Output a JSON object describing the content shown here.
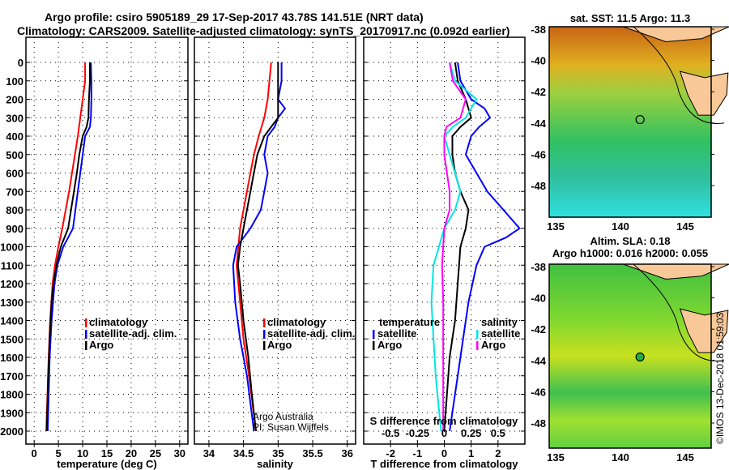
{
  "title_line1": "Argo profile: csiro 5905189_29 17-Sep-2017 43.78S 141.51E (NRT data)",
  "title_line2": "Climatology: CARS2009. Satellite-adjusted climatology: synTS_20170917.nc (0.092d earlier)",
  "credit_line1": "Argo Australia",
  "credit_line2": "PI: Susan Wijffels",
  "timestamp": "©IMOS 13-Dec-2018 01:59:03",
  "colors": {
    "argo": "#000000",
    "climatology": "#ff0000",
    "satellite": "#0000ff",
    "sal_satellite": "#00e5e5",
    "sal_argo": "#ff00ff"
  },
  "chart_data": [
    {
      "type": "line",
      "name": "temperature",
      "xlabel": "temperature (deg C)",
      "xlim": [
        -1.7,
        31.7
      ],
      "ylim": [
        2060,
        -50
      ],
      "xticks": [
        "0",
        "5",
        "10",
        "15",
        "20",
        "25",
        "30"
      ],
      "xtick_values": [
        0,
        5,
        10,
        15,
        20,
        25,
        30
      ],
      "yticks": [
        "0",
        "100",
        "200",
        "300",
        "400",
        "500",
        "600",
        "700",
        "800",
        "900",
        "1000",
        "1100",
        "1200",
        "1300",
        "1400",
        "1500",
        "1600",
        "1700",
        "1800",
        "1900",
        "2000"
      ],
      "legend": [
        "climatology",
        "satellite-adj. clim.",
        "Argo"
      ],
      "series": [
        {
          "name": "climatology",
          "color": "#ff0000",
          "depth": [
            0,
            100,
            200,
            300,
            400,
            500,
            600,
            700,
            800,
            900,
            1000,
            1100,
            1200,
            1400,
            1600,
            2000
          ],
          "values": [
            10.5,
            10.5,
            10,
            9.5,
            9,
            8.4,
            7.8,
            7.2,
            6.5,
            5.8,
            5,
            4.3,
            3.8,
            3.3,
            3,
            2.5
          ]
        },
        {
          "name": "satellite-adj. clim.",
          "color": "#0000ff",
          "depth": [
            0,
            100,
            200,
            300,
            350,
            400,
            500,
            600,
            700,
            800,
            900,
            1000,
            1100,
            1200,
            1400,
            1600,
            2000
          ],
          "values": [
            11.7,
            11.8,
            11.8,
            11.7,
            11.5,
            10.5,
            10,
            9.5,
            9,
            8.5,
            8,
            6,
            4.8,
            4.2,
            3.6,
            3.2,
            2.8
          ]
        },
        {
          "name": "Argo",
          "color": "#000000",
          "depth": [
            0,
            100,
            200,
            300,
            350,
            400,
            500,
            600,
            700,
            800,
            900,
            1000,
            1100,
            1200,
            1300,
            1500,
            1700,
            2000
          ],
          "values": [
            11.5,
            11.5,
            11.3,
            11.2,
            10.8,
            10,
            9.3,
            8.8,
            8.2,
            7.6,
            7,
            5.5,
            4.6,
            4,
            3.6,
            3.2,
            2.9,
            2.6
          ]
        }
      ]
    },
    {
      "type": "line",
      "name": "salinity",
      "xlabel": "salinity",
      "xlim": [
        33.79,
        36.12
      ],
      "ylim": [
        2060,
        -50
      ],
      "xticks": [
        "34",
        "34.5",
        "35",
        "35.5",
        "36"
      ],
      "xtick_values": [
        34,
        34.5,
        35,
        35.5,
        36
      ],
      "legend": [
        "climatology",
        "satellite-adj. clim.",
        "Argo"
      ],
      "series": [
        {
          "name": "climatology",
          "color": "#ff0000",
          "depth": [
            0,
            200,
            300,
            400,
            500,
            700,
            900,
            1100,
            1300,
            1500,
            1700,
            2000
          ],
          "values": [
            34.9,
            34.85,
            34.8,
            34.72,
            34.65,
            34.55,
            34.45,
            34.4,
            34.45,
            34.5,
            34.58,
            34.68
          ]
        },
        {
          "name": "satellite-adj. clim.",
          "color": "#0000ff",
          "depth": [
            0,
            100,
            200,
            250,
            300,
            350,
            400,
            500,
            600,
            700,
            800,
            900,
            1000,
            1100,
            1300,
            1500,
            1700,
            2000
          ],
          "values": [
            35.05,
            35.05,
            35.0,
            35.1,
            35.0,
            34.95,
            34.85,
            34.8,
            34.85,
            34.8,
            34.75,
            34.6,
            34.4,
            34.35,
            34.38,
            34.45,
            34.55,
            34.65
          ]
        },
        {
          "name": "Argo",
          "color": "#000000",
          "depth": [
            0,
            100,
            300,
            350,
            400,
            500,
            700,
            900,
            1000,
            1100,
            1200,
            1400,
            1600,
            1800,
            2000
          ],
          "values": [
            35.0,
            35.0,
            35.0,
            34.9,
            34.8,
            34.7,
            34.6,
            34.5,
            34.45,
            34.42,
            34.45,
            34.5,
            34.57,
            34.62,
            34.68
          ]
        }
      ]
    },
    {
      "type": "line",
      "name": "difference",
      "xlabel": "T difference from climatology",
      "s_label": "S difference from climatology",
      "xlim": [
        -3,
        3
      ],
      "ylim": [
        2060,
        -50
      ],
      "xticks": [
        "-2",
        "-1",
        "0",
        "1",
        "2"
      ],
      "xtick_values": [
        -2,
        -1,
        0,
        1,
        2
      ],
      "s_ticks": [
        "-0.5",
        "-0.25",
        "0",
        "0.25",
        "0.5"
      ],
      "s_tick_values": [
        -0.5,
        -0.25,
        0,
        0.25,
        0.5
      ],
      "legend_temperature": {
        "title": "temperature",
        "items": [
          "satellite",
          "Argo"
        ]
      },
      "legend_salinity": {
        "title": "salinity",
        "items": [
          "satellite",
          "Argo"
        ]
      },
      "series": [
        {
          "name": "temperature satellite",
          "color": "#0000ff",
          "unit": "T",
          "depth": [
            0,
            100,
            200,
            250,
            300,
            350,
            400,
            500,
            600,
            700,
            800,
            900,
            950,
            1000,
            1100,
            1300,
            1500,
            1700,
            2000
          ],
          "values": [
            0.5,
            0.6,
            1,
            1.5,
            1.7,
            1.3,
            1,
            0.8,
            1.2,
            1.6,
            2.2,
            2.8,
            2.3,
            1.5,
            1.2,
            0.9,
            0.7,
            0.5,
            0.2
          ]
        },
        {
          "name": "temperature Argo",
          "color": "#000000",
          "unit": "T",
          "depth": [
            0,
            100,
            200,
            300,
            350,
            400,
            500,
            600,
            700,
            800,
            900,
            1000,
            1200,
            1400,
            1600,
            1800,
            2000
          ],
          "values": [
            0.4,
            0.5,
            0.8,
            1,
            0.6,
            0.3,
            0.3,
            0.4,
            0.6,
            0.9,
            0.8,
            0.6,
            0.5,
            0.4,
            0.2,
            0.1,
            0
          ]
        },
        {
          "name": "salinity satellite",
          "color": "#00e5e5",
          "unit": "S",
          "depth": [
            0,
            100,
            200,
            300,
            350,
            400,
            500,
            600,
            700,
            800,
            900,
            1000,
            1100,
            1300,
            1500,
            1700,
            2000
          ],
          "values": [
            0.05,
            0.1,
            0.3,
            0.2,
            0.08,
            0,
            0.05,
            0.1,
            0.15,
            0.1,
            0,
            -0.05,
            -0.1,
            -0.12,
            -0.1,
            -0.08,
            -0.03
          ]
        },
        {
          "name": "salinity Argo",
          "color": "#ff00ff",
          "unit": "S",
          "depth": [
            0,
            100,
            200,
            300,
            350,
            400,
            500,
            700,
            800,
            900,
            1100,
            1300,
            1600,
            2000
          ],
          "values": [
            0.05,
            0.08,
            0.2,
            0.15,
            0.02,
            0,
            0,
            0.05,
            0.05,
            0,
            -0.02,
            -0.01,
            -0.01,
            -0.01
          ]
        }
      ]
    },
    {
      "type": "heatmap",
      "name": "sst-map",
      "title": "sat. SST: 11.5 Argo: 11.3",
      "lon_ticks": [
        "135",
        "140",
        "145"
      ],
      "lat_ticks": [
        "-38",
        "-40",
        "-42",
        "-44",
        "-46",
        "-48"
      ],
      "float_lon": 141.51,
      "float_lat": -43.78
    },
    {
      "type": "heatmap",
      "name": "sla-map",
      "title_line1": "Altim. SLA: 0.18",
      "title_line2": "Argo h1000: 0.016 h2000: 0.055",
      "lon_ticks": [
        "135",
        "140",
        "145"
      ],
      "lat_ticks": [
        "-38",
        "-40",
        "-42",
        "-44",
        "-46",
        "-48"
      ],
      "float_lon": 141.51,
      "float_lat": -43.78
    }
  ]
}
